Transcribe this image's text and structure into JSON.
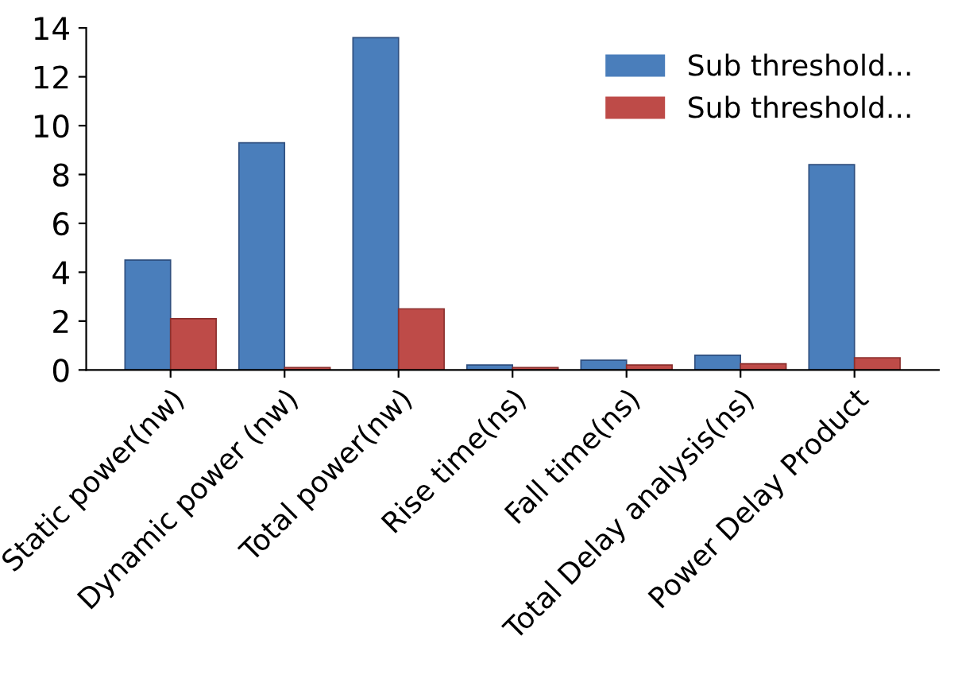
{
  "chart_data": {
    "type": "bar",
    "categories": [
      "Static power(nw)",
      "Dynamic power (nw)",
      "Total power(nw)",
      "Rise time(ns)",
      "Fall time(ns)",
      "Total Delay analysis(ns)",
      "Power Delay Product"
    ],
    "series": [
      {
        "name": "Sub threshold...",
        "color": "#4a7ebb",
        "values": [
          4.5,
          9.3,
          13.6,
          0.2,
          0.4,
          0.6,
          8.4
        ]
      },
      {
        "name": "Sub threshold...",
        "color": "#be4b48",
        "values": [
          2.1,
          0.1,
          2.5,
          0.1,
          0.2,
          0.25,
          0.5
        ]
      }
    ],
    "ylim": [
      0,
      14
    ],
    "yticks": [
      0,
      2,
      4,
      6,
      8,
      10,
      12,
      14
    ],
    "grid": false,
    "legend": "top right"
  }
}
